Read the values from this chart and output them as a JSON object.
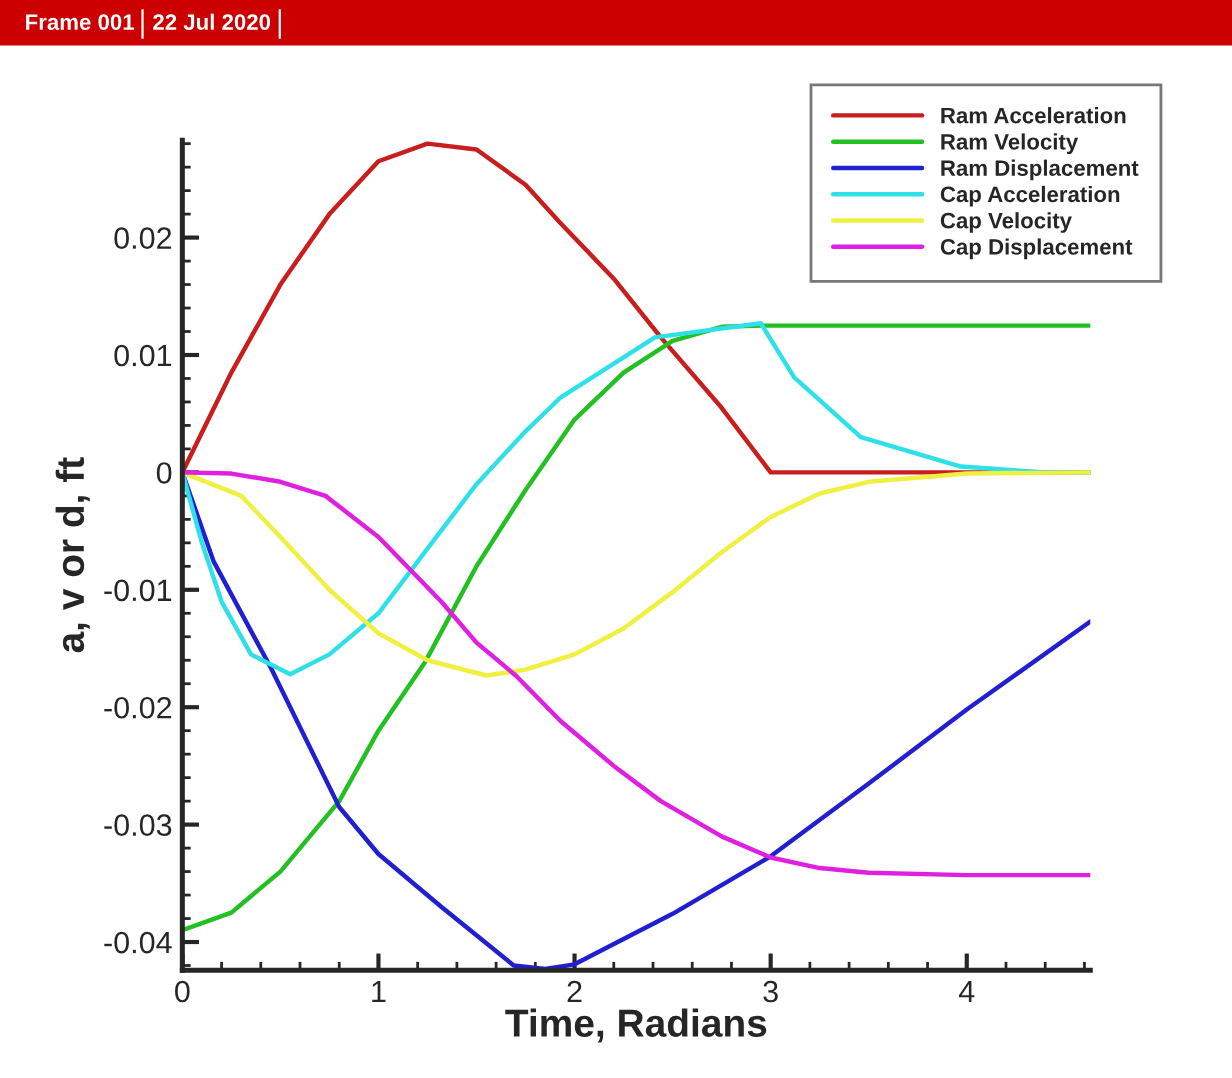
{
  "chart_data": {
    "type": "line",
    "xlabel": "Time, Radians",
    "ylabel": "a, v or d, ft",
    "annotations": [
      "Frame 001",
      "22 Jul 2020"
    ],
    "xlim": [
      0,
      4.63
    ],
    "ylim": [
      -0.0424,
      0.0283
    ],
    "xticks": [
      0,
      1,
      2,
      3,
      4
    ],
    "yticks": [
      -0.04,
      -0.03,
      -0.02,
      -0.01,
      0,
      0.01,
      0.02
    ],
    "grid": false,
    "legend": "top right",
    "marker": "none",
    "line_style": "solid",
    "series": [
      {
        "name": "Ram Acceleration",
        "color": "#c81e1e",
        "x": [
          0,
          0.25,
          0.5,
          0.75,
          1.0,
          1.25,
          1.5,
          1.75,
          1.93,
          2.2,
          2.44,
          2.75,
          3.0,
          4.63
        ],
        "values": [
          0,
          0.0085,
          0.016,
          0.022,
          0.0265,
          0.028,
          0.0275,
          0.0245,
          0.0212,
          0.0165,
          0.0115,
          0.0055,
          0,
          0
        ]
      },
      {
        "name": "Ram Velocity",
        "color": "#22c022",
        "x": [
          0,
          0.25,
          0.5,
          0.8,
          1.0,
          1.24,
          1.5,
          1.75,
          2.0,
          2.25,
          2.5,
          2.75,
          2.95,
          4.63
        ],
        "values": [
          -0.039,
          -0.0375,
          -0.034,
          -0.028,
          -0.022,
          -0.0161,
          -0.008,
          -0.0015,
          0.0045,
          0.0085,
          0.0112,
          0.0124,
          0.0125,
          0.0125
        ]
      },
      {
        "name": "Ram Displacement",
        "color": "#2020d0",
        "x": [
          0,
          0.16,
          0.45,
          0.8,
          1.0,
          1.32,
          1.69,
          1.85,
          2.0,
          2.5,
          3.0,
          3.5,
          4.0,
          4.63
        ],
        "values": [
          0,
          -0.0076,
          -0.0166,
          -0.0285,
          -0.0325,
          -0.037,
          -0.042,
          -0.0423,
          -0.0419,
          -0.0376,
          -0.0327,
          -0.0265,
          -0.0202,
          -0.0127
        ]
      },
      {
        "name": "Cap Acceleration",
        "color": "#30e0e8",
        "x": [
          0,
          0.1,
          0.2,
          0.35,
          0.55,
          0.75,
          1.0,
          1.25,
          1.5,
          1.75,
          1.93,
          2.41,
          2.95,
          3.12,
          3.46,
          3.97,
          4.4,
          4.63
        ],
        "values": [
          0,
          -0.006,
          -0.011,
          -0.0155,
          -0.0172,
          -0.0155,
          -0.012,
          -0.0065,
          -0.001,
          0.0035,
          0.0064,
          0.0115,
          0.0127,
          0.0081,
          0.003,
          0.0005,
          0,
          0
        ]
      },
      {
        "name": "Cap Velocity",
        "color": "#f0f040",
        "x": [
          0,
          0.3,
          0.5,
          0.75,
          1.0,
          1.25,
          1.55,
          1.75,
          2.0,
          2.25,
          2.5,
          2.75,
          3.0,
          3.25,
          3.5,
          4.0,
          4.63
        ],
        "values": [
          0,
          -0.002,
          -0.0055,
          -0.01,
          -0.0137,
          -0.016,
          -0.0173,
          -0.0168,
          -0.0155,
          -0.0133,
          -0.0102,
          -0.0068,
          -0.0038,
          -0.0018,
          -0.0008,
          -0.0001,
          0
        ]
      },
      {
        "name": "Cap Displacement",
        "color": "#e020e0",
        "x": [
          0,
          0.25,
          0.5,
          0.73,
          1.0,
          1.32,
          1.5,
          1.7,
          1.93,
          2.2,
          2.44,
          2.75,
          3.0,
          3.25,
          3.5,
          4.0,
          4.63
        ],
        "values": [
          0,
          -0.0001,
          -0.0008,
          -0.002,
          -0.0055,
          -0.011,
          -0.0145,
          -0.0173,
          -0.0212,
          -0.025,
          -0.028,
          -0.031,
          -0.0328,
          -0.0337,
          -0.0341,
          -0.0343,
          -0.0343
        ]
      }
    ]
  }
}
